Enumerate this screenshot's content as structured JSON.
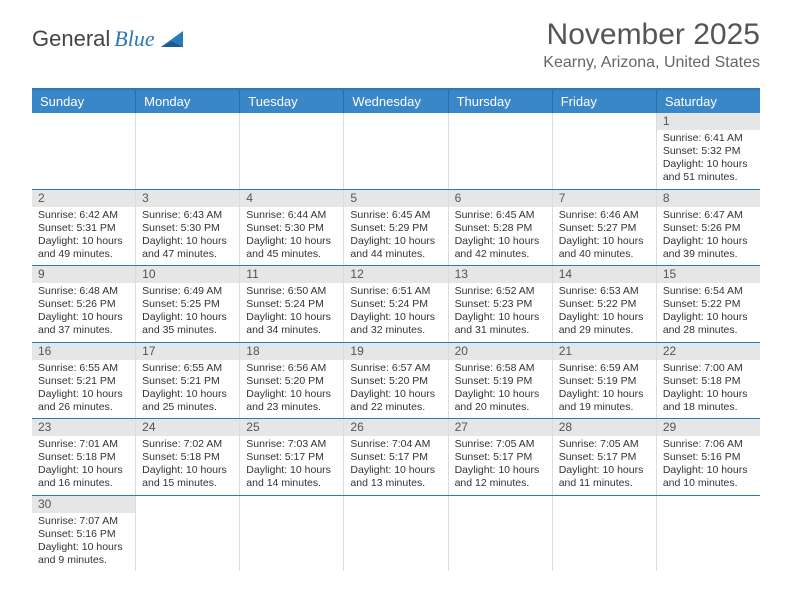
{
  "logo": {
    "general": "General",
    "blue": "Blue"
  },
  "title": "November 2025",
  "location": "Kearny, Arizona, United States",
  "dow": [
    "Sunday",
    "Monday",
    "Tuesday",
    "Wednesday",
    "Thursday",
    "Friday",
    "Saturday"
  ],
  "colors": {
    "header_bar": "#3a87c8",
    "border_blue": "#2a7ab8",
    "daynum_bg": "#e6e6e6",
    "text": "#333333",
    "title_text": "#555555"
  },
  "weeks": [
    [
      {
        "n": "",
        "sr": "",
        "ss": "",
        "dl": ""
      },
      {
        "n": "",
        "sr": "",
        "ss": "",
        "dl": ""
      },
      {
        "n": "",
        "sr": "",
        "ss": "",
        "dl": ""
      },
      {
        "n": "",
        "sr": "",
        "ss": "",
        "dl": ""
      },
      {
        "n": "",
        "sr": "",
        "ss": "",
        "dl": ""
      },
      {
        "n": "",
        "sr": "",
        "ss": "",
        "dl": ""
      },
      {
        "n": "1",
        "sr": "Sunrise: 6:41 AM",
        "ss": "Sunset: 5:32 PM",
        "dl": "Daylight: 10 hours and 51 minutes."
      }
    ],
    [
      {
        "n": "2",
        "sr": "Sunrise: 6:42 AM",
        "ss": "Sunset: 5:31 PM",
        "dl": "Daylight: 10 hours and 49 minutes."
      },
      {
        "n": "3",
        "sr": "Sunrise: 6:43 AM",
        "ss": "Sunset: 5:30 PM",
        "dl": "Daylight: 10 hours and 47 minutes."
      },
      {
        "n": "4",
        "sr": "Sunrise: 6:44 AM",
        "ss": "Sunset: 5:30 PM",
        "dl": "Daylight: 10 hours and 45 minutes."
      },
      {
        "n": "5",
        "sr": "Sunrise: 6:45 AM",
        "ss": "Sunset: 5:29 PM",
        "dl": "Daylight: 10 hours and 44 minutes."
      },
      {
        "n": "6",
        "sr": "Sunrise: 6:45 AM",
        "ss": "Sunset: 5:28 PM",
        "dl": "Daylight: 10 hours and 42 minutes."
      },
      {
        "n": "7",
        "sr": "Sunrise: 6:46 AM",
        "ss": "Sunset: 5:27 PM",
        "dl": "Daylight: 10 hours and 40 minutes."
      },
      {
        "n": "8",
        "sr": "Sunrise: 6:47 AM",
        "ss": "Sunset: 5:26 PM",
        "dl": "Daylight: 10 hours and 39 minutes."
      }
    ],
    [
      {
        "n": "9",
        "sr": "Sunrise: 6:48 AM",
        "ss": "Sunset: 5:26 PM",
        "dl": "Daylight: 10 hours and 37 minutes."
      },
      {
        "n": "10",
        "sr": "Sunrise: 6:49 AM",
        "ss": "Sunset: 5:25 PM",
        "dl": "Daylight: 10 hours and 35 minutes."
      },
      {
        "n": "11",
        "sr": "Sunrise: 6:50 AM",
        "ss": "Sunset: 5:24 PM",
        "dl": "Daylight: 10 hours and 34 minutes."
      },
      {
        "n": "12",
        "sr": "Sunrise: 6:51 AM",
        "ss": "Sunset: 5:24 PM",
        "dl": "Daylight: 10 hours and 32 minutes."
      },
      {
        "n": "13",
        "sr": "Sunrise: 6:52 AM",
        "ss": "Sunset: 5:23 PM",
        "dl": "Daylight: 10 hours and 31 minutes."
      },
      {
        "n": "14",
        "sr": "Sunrise: 6:53 AM",
        "ss": "Sunset: 5:22 PM",
        "dl": "Daylight: 10 hours and 29 minutes."
      },
      {
        "n": "15",
        "sr": "Sunrise: 6:54 AM",
        "ss": "Sunset: 5:22 PM",
        "dl": "Daylight: 10 hours and 28 minutes."
      }
    ],
    [
      {
        "n": "16",
        "sr": "Sunrise: 6:55 AM",
        "ss": "Sunset: 5:21 PM",
        "dl": "Daylight: 10 hours and 26 minutes."
      },
      {
        "n": "17",
        "sr": "Sunrise: 6:55 AM",
        "ss": "Sunset: 5:21 PM",
        "dl": "Daylight: 10 hours and 25 minutes."
      },
      {
        "n": "18",
        "sr": "Sunrise: 6:56 AM",
        "ss": "Sunset: 5:20 PM",
        "dl": "Daylight: 10 hours and 23 minutes."
      },
      {
        "n": "19",
        "sr": "Sunrise: 6:57 AM",
        "ss": "Sunset: 5:20 PM",
        "dl": "Daylight: 10 hours and 22 minutes."
      },
      {
        "n": "20",
        "sr": "Sunrise: 6:58 AM",
        "ss": "Sunset: 5:19 PM",
        "dl": "Daylight: 10 hours and 20 minutes."
      },
      {
        "n": "21",
        "sr": "Sunrise: 6:59 AM",
        "ss": "Sunset: 5:19 PM",
        "dl": "Daylight: 10 hours and 19 minutes."
      },
      {
        "n": "22",
        "sr": "Sunrise: 7:00 AM",
        "ss": "Sunset: 5:18 PM",
        "dl": "Daylight: 10 hours and 18 minutes."
      }
    ],
    [
      {
        "n": "23",
        "sr": "Sunrise: 7:01 AM",
        "ss": "Sunset: 5:18 PM",
        "dl": "Daylight: 10 hours and 16 minutes."
      },
      {
        "n": "24",
        "sr": "Sunrise: 7:02 AM",
        "ss": "Sunset: 5:18 PM",
        "dl": "Daylight: 10 hours and 15 minutes."
      },
      {
        "n": "25",
        "sr": "Sunrise: 7:03 AM",
        "ss": "Sunset: 5:17 PM",
        "dl": "Daylight: 10 hours and 14 minutes."
      },
      {
        "n": "26",
        "sr": "Sunrise: 7:04 AM",
        "ss": "Sunset: 5:17 PM",
        "dl": "Daylight: 10 hours and 13 minutes."
      },
      {
        "n": "27",
        "sr": "Sunrise: 7:05 AM",
        "ss": "Sunset: 5:17 PM",
        "dl": "Daylight: 10 hours and 12 minutes."
      },
      {
        "n": "28",
        "sr": "Sunrise: 7:05 AM",
        "ss": "Sunset: 5:17 PM",
        "dl": "Daylight: 10 hours and 11 minutes."
      },
      {
        "n": "29",
        "sr": "Sunrise: 7:06 AM",
        "ss": "Sunset: 5:16 PM",
        "dl": "Daylight: 10 hours and 10 minutes."
      }
    ],
    [
      {
        "n": "30",
        "sr": "Sunrise: 7:07 AM",
        "ss": "Sunset: 5:16 PM",
        "dl": "Daylight: 10 hours and 9 minutes."
      },
      {
        "n": "",
        "sr": "",
        "ss": "",
        "dl": ""
      },
      {
        "n": "",
        "sr": "",
        "ss": "",
        "dl": ""
      },
      {
        "n": "",
        "sr": "",
        "ss": "",
        "dl": ""
      },
      {
        "n": "",
        "sr": "",
        "ss": "",
        "dl": ""
      },
      {
        "n": "",
        "sr": "",
        "ss": "",
        "dl": ""
      },
      {
        "n": "",
        "sr": "",
        "ss": "",
        "dl": ""
      }
    ]
  ]
}
